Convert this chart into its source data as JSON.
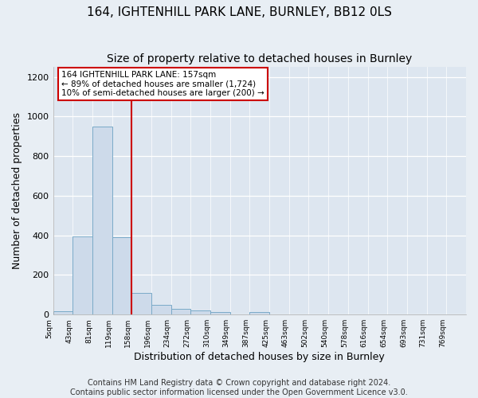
{
  "title1": "164, IGHTENHILL PARK LANE, BURNLEY, BB12 0LS",
  "title2": "Size of property relative to detached houses in Burnley",
  "xlabel": "Distribution of detached houses by size in Burnley",
  "ylabel": "Number of detached properties",
  "footer1": "Contains HM Land Registry data © Crown copyright and database right 2024.",
  "footer2": "Contains public sector information licensed under the Open Government Licence v3.0.",
  "bin_labels": [
    "5sqm",
    "43sqm",
    "81sqm",
    "119sqm",
    "158sqm",
    "196sqm",
    "234sqm",
    "272sqm",
    "310sqm",
    "349sqm",
    "387sqm",
    "425sqm",
    "463sqm",
    "502sqm",
    "540sqm",
    "578sqm",
    "616sqm",
    "654sqm",
    "693sqm",
    "731sqm",
    "769sqm"
  ],
  "bar_heights": [
    15,
    395,
    950,
    390,
    110,
    50,
    28,
    20,
    13,
    0,
    13,
    0,
    0,
    0,
    0,
    0,
    0,
    0,
    0,
    0,
    0
  ],
  "bar_color": "#cddaea",
  "bar_edge_color": "#7aaac8",
  "vline_x": 4,
  "vline_color": "#cc0000",
  "annotation_line1": "164 IGHTENHILL PARK LANE: 157sqm",
  "annotation_line2": "← 89% of detached houses are smaller (1,724)",
  "annotation_line3": "10% of semi-detached houses are larger (200) →",
  "annotation_box_color": "#ffffff",
  "annotation_box_edge": "#cc0000",
  "ylim": [
    0,
    1250
  ],
  "yticks": [
    0,
    200,
    400,
    600,
    800,
    1000,
    1200
  ],
  "figure_bg_color": "#e8eef4",
  "plot_bg_color": "#dde6f0",
  "grid_color": "#ffffff",
  "title1_fontsize": 11,
  "title2_fontsize": 10,
  "xlabel_fontsize": 9,
  "ylabel_fontsize": 9,
  "tick_fontsize": 8,
  "footer_fontsize": 7
}
